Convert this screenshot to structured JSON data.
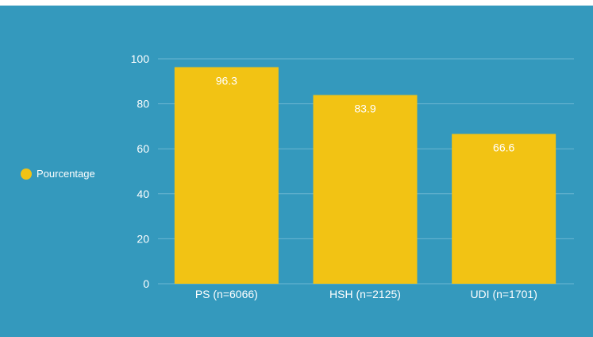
{
  "chart_data": {
    "type": "bar",
    "categories": [
      "PS (n=6066)",
      "HSH (n=2125)",
      "UDI (n=1701)"
    ],
    "series": [
      {
        "name": "Pourcentage",
        "values": [
          96.3,
          83.9,
          66.6
        ],
        "color": "#f2c314"
      }
    ],
    "yticks": [
      "0",
      "20",
      "40",
      "60",
      "80",
      "100"
    ],
    "ylim": [
      0,
      100
    ],
    "grid": true,
    "legend_position": "left",
    "background_color": "#3499bd",
    "gridline_color": "#6bb6d2",
    "text_color": "#ffffff"
  }
}
